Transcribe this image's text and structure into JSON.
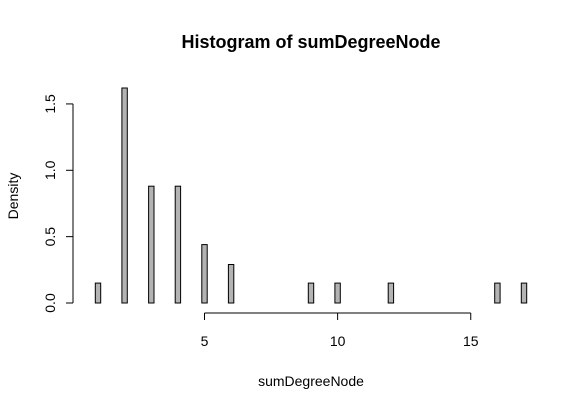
{
  "chart_data": {
    "type": "bar",
    "title": "Histogram of sumDegreeNode",
    "xlabel": "sumDegreeNode",
    "ylabel": "Density",
    "x": [
      1,
      2,
      3,
      4,
      5,
      6,
      9,
      10,
      12,
      16,
      17
    ],
    "values": [
      0.15,
      1.62,
      0.88,
      0.88,
      0.44,
      0.29,
      0.15,
      0.15,
      0.15,
      0.15,
      0.15
    ],
    "bin_width": 0.2,
    "xlim": [
      1,
      17
    ],
    "ylim": [
      0,
      1.62
    ],
    "x_ticks": [
      5,
      10,
      15
    ],
    "y_ticks": [
      0.0,
      0.5,
      1.0,
      1.5
    ],
    "x_tick_labels": [
      "5",
      "10",
      "15"
    ],
    "y_tick_labels": [
      "0.0",
      "0.5",
      "1.0",
      "1.5"
    ],
    "bar_color": "#b3b3b3",
    "grid": false,
    "legend": "none"
  }
}
